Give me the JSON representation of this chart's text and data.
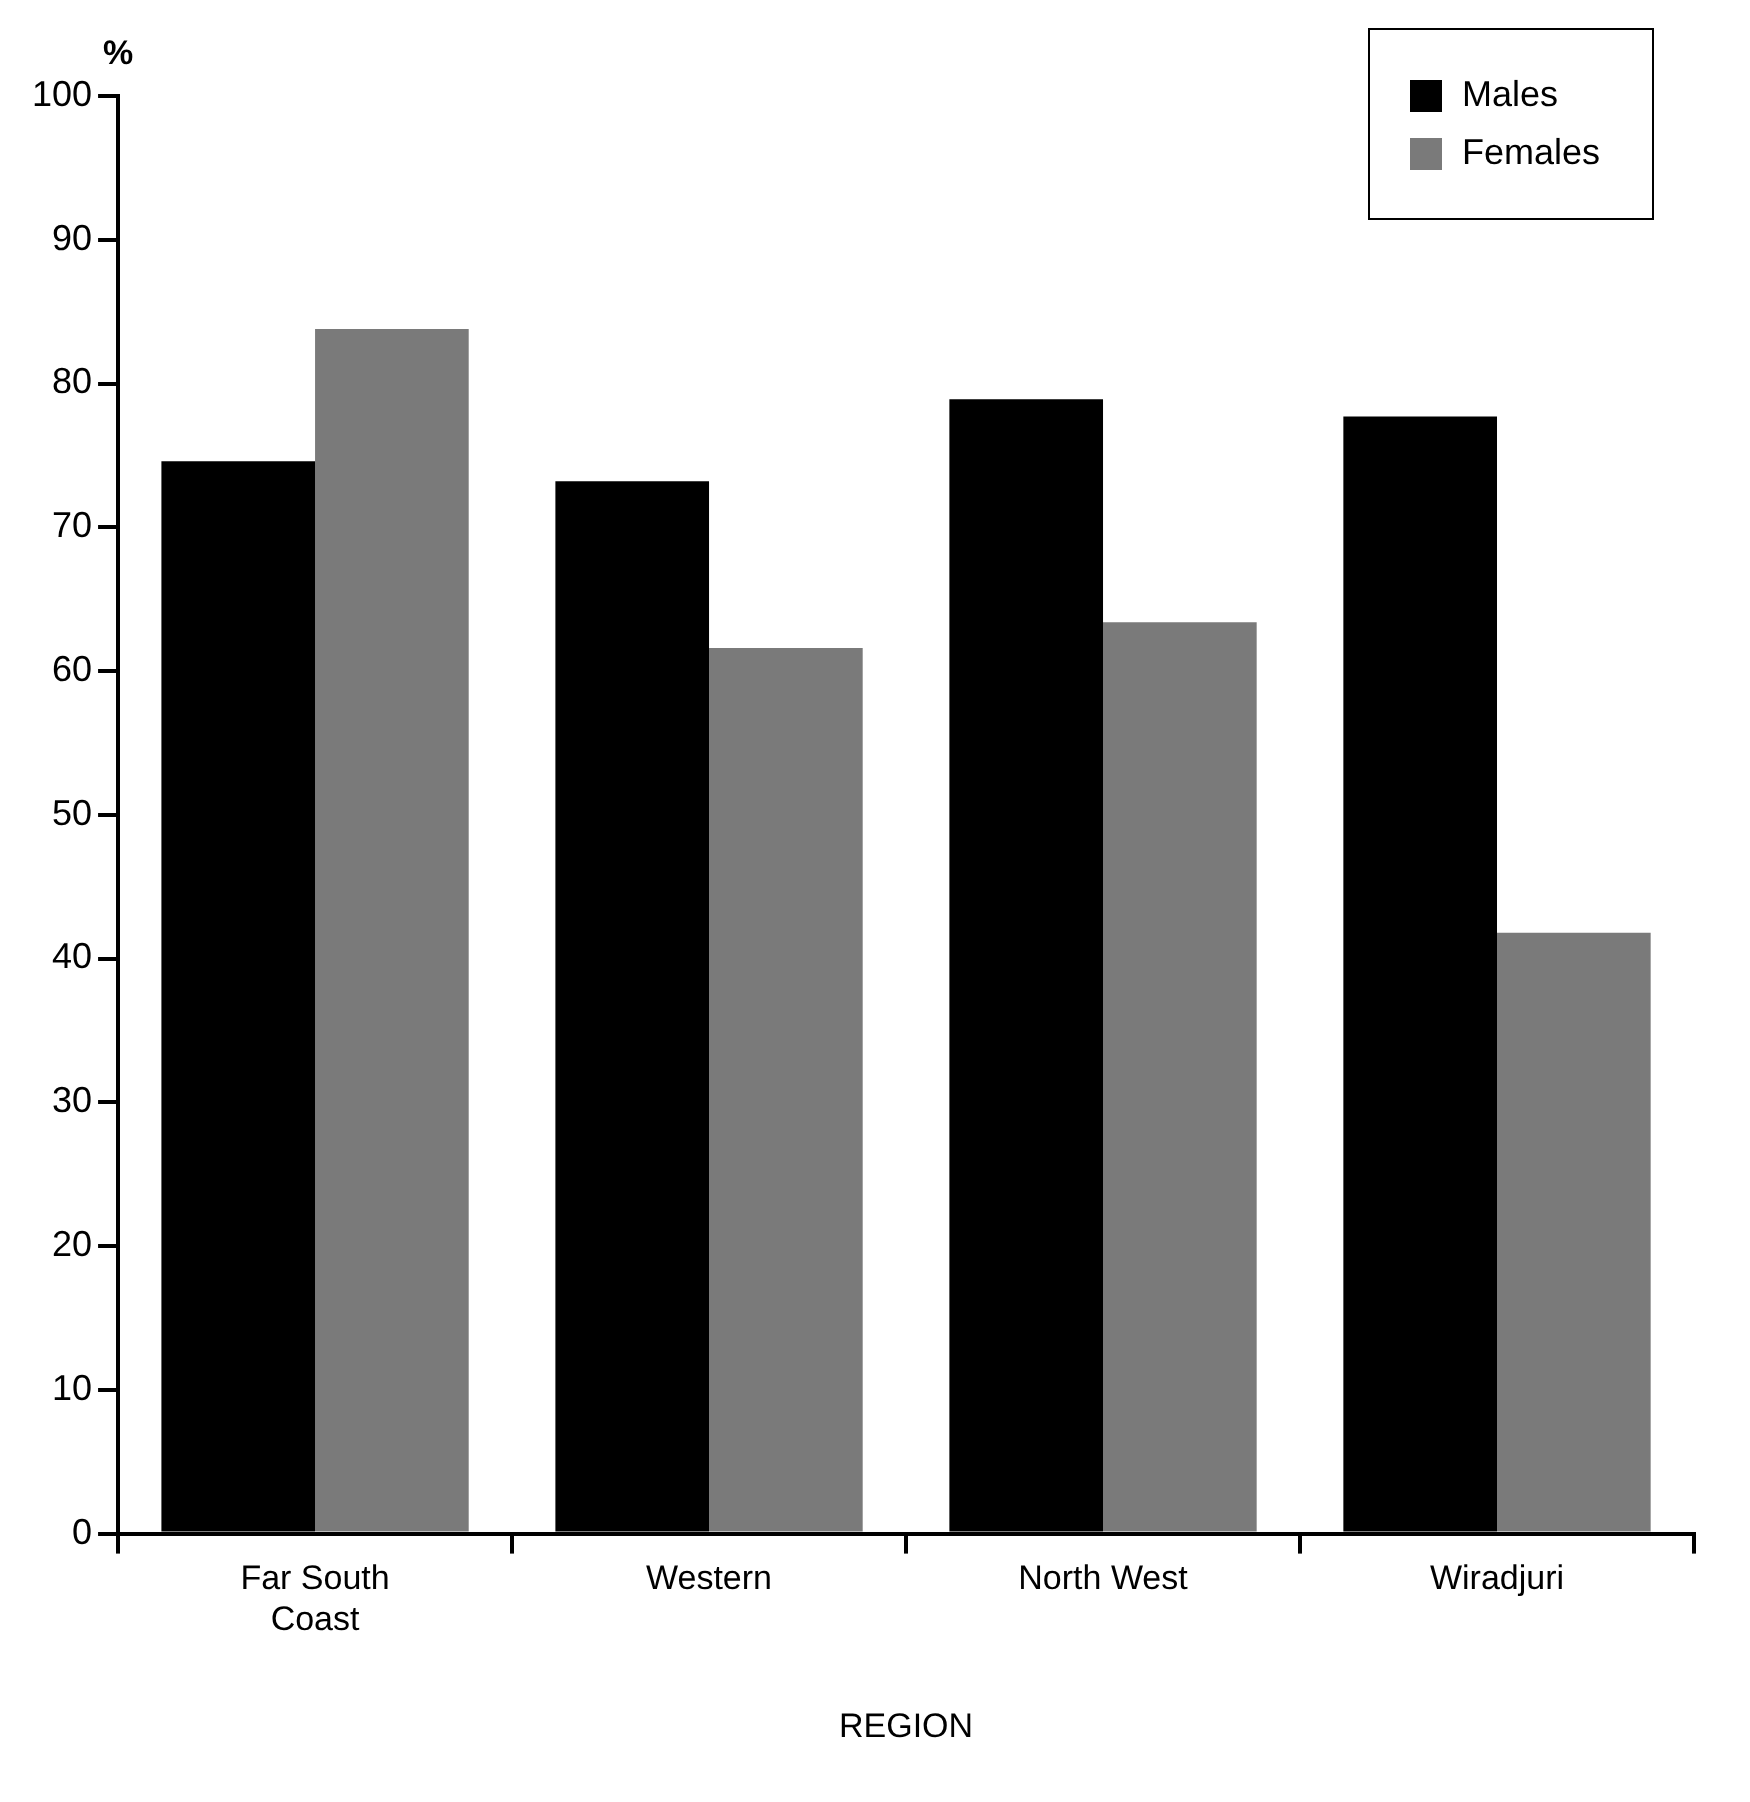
{
  "chart_data": {
    "type": "bar",
    "ylabel": "%",
    "xlabel": "REGION",
    "categories": [
      "Far South Coast",
      "Western",
      "North West",
      "Wiradjuri"
    ],
    "series": [
      {
        "name": "Males",
        "color": "#000000",
        "values": [
          74.6,
          73.2,
          78.9,
          77.7
        ]
      },
      {
        "name": "Females",
        "color": "#7a7a7a",
        "values": [
          83.8,
          61.6,
          63.4,
          41.8
        ]
      }
    ],
    "ylim": [
      0,
      100
    ],
    "yticks": [
      0,
      10,
      20,
      30,
      40,
      50,
      60,
      70,
      80,
      90,
      100
    ],
    "grid": false,
    "legend": "top right"
  }
}
